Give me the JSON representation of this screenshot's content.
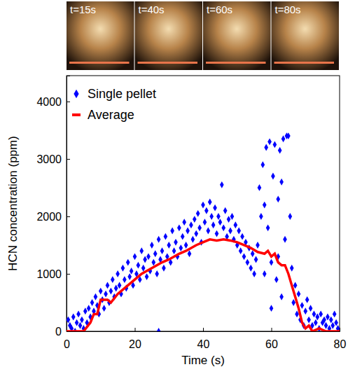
{
  "chart_data": {
    "type": "scatter",
    "annotations": [
      "t=15s",
      "t=40s",
      "t=60s",
      "t=80s"
    ],
    "x_label": "Time (s)",
    "y_label": "HCN concentration (ppm)",
    "xlim": [
      0,
      80
    ],
    "xticks": [
      0,
      20,
      40,
      60,
      80
    ],
    "ylim": [
      0,
      4450
    ],
    "yticks": [
      0,
      1000,
      2000,
      3000,
      4000
    ],
    "grid": false,
    "legend": "upper left",
    "series": [
      {
        "name": "Single pellet",
        "type": "scatter",
        "color": "#0000ff",
        "marker": "diamond",
        "x": [
          0.5,
          1,
          1.5,
          2,
          2.5,
          3,
          3.5,
          4,
          4.5,
          5,
          5.5,
          6,
          6.5,
          7,
          7.5,
          8,
          8.5,
          9,
          9.5,
          10,
          10.5,
          11,
          11.5,
          12,
          12.5,
          13,
          13.5,
          14,
          14.5,
          15,
          15.5,
          16,
          16.5,
          17,
          17.5,
          18,
          18.5,
          19,
          19.5,
          20,
          20.5,
          21,
          21.5,
          22,
          22.5,
          23,
          23.5,
          24,
          24.5,
          25,
          25.5,
          26,
          26.5,
          27,
          27.5,
          28,
          28.5,
          29,
          29.5,
          30,
          30.5,
          31,
          31.5,
          32,
          32.5,
          33,
          33.5,
          34,
          34.5,
          35,
          35.5,
          36,
          36.5,
          37,
          37.5,
          38,
          38.5,
          39,
          39.5,
          40,
          27,
          40.5,
          41,
          41.5,
          42,
          42.5,
          43,
          43.5,
          44,
          44.5,
          45,
          45.5,
          46,
          46.5,
          47,
          47.5,
          48,
          48.5,
          49,
          49.5,
          50,
          50.5,
          51,
          51.5,
          52,
          52.5,
          53,
          53.5,
          54,
          54.5,
          55,
          55.5,
          56,
          56.5,
          57,
          57.5,
          58,
          58.5,
          59,
          59.5,
          60,
          60.5,
          61,
          61.5,
          62,
          62.5,
          63,
          63.5,
          64,
          64.5,
          65,
          65.5,
          66,
          60,
          62,
          63,
          58,
          66.5,
          67,
          67.5,
          68,
          68.5,
          69,
          69.5,
          70,
          70.5,
          71,
          71.5,
          72,
          72.5,
          73,
          73.5,
          74,
          74.5,
          75,
          75.5,
          76,
          76.5,
          77,
          77.5,
          78,
          78.5,
          79,
          79.5
        ],
        "values": [
          200,
          100,
          50,
          250,
          0,
          150,
          300,
          100,
          200,
          50,
          350,
          150,
          400,
          250,
          500,
          350,
          600,
          450,
          300,
          700,
          550,
          400,
          650,
          800,
          500,
          700,
          900,
          600,
          750,
          1000,
          800,
          650,
          1100,
          900,
          750,
          1200,
          950,
          1050,
          800,
          1300,
          1000,
          1150,
          900,
          1400,
          1100,
          1250,
          950,
          1300,
          1050,
          1500,
          1200,
          1350,
          1000,
          1600,
          1250,
          1400,
          1100,
          1650,
          1300,
          1500,
          1200,
          1750,
          1400,
          1550,
          1300,
          1800,
          1450,
          1650,
          1900,
          1500,
          1750,
          1350,
          1850,
          1600,
          1950,
          1700,
          2050,
          1800,
          1550,
          2200,
          0,
          1900,
          2100,
          1750,
          2250,
          2000,
          1850,
          2150,
          1700,
          2000,
          1900,
          2550,
          1800,
          2100,
          1650,
          1950,
          1750,
          2000,
          1600,
          1850,
          1500,
          1750,
          1400,
          1650,
          1300,
          1550,
          1200,
          1450,
          1100,
          1350,
          1000,
          1250,
          1500,
          2500,
          2000,
          2900,
          2200,
          3200,
          1800,
          3300,
          1200,
          2700,
          3250,
          900,
          2300,
          3150,
          600,
          3350,
          1600,
          3400,
          3400,
          2000,
          1100,
          400,
          1300,
          2600,
          1000,
          500,
          800,
          300,
          650,
          200,
          450,
          100,
          350,
          550,
          200,
          400,
          100,
          300,
          150,
          250,
          50,
          300,
          150,
          200,
          100,
          250,
          50,
          200,
          100,
          300,
          150,
          50
        ]
      },
      {
        "name": "Average",
        "type": "line",
        "color": "#ff0000",
        "line_style": "solid",
        "x": [
          0,
          5,
          7,
          8,
          9,
          10,
          12,
          13,
          15,
          18,
          20,
          22,
          25,
          28,
          30,
          33,
          35,
          38,
          40,
          42,
          44,
          46,
          48,
          50,
          52,
          54,
          56,
          58,
          59,
          60,
          61,
          62,
          63,
          64,
          65,
          66,
          67,
          68,
          69,
          70,
          71,
          72,
          74,
          76,
          80
        ],
        "values": [
          0,
          0,
          150,
          300,
          300,
          550,
          550,
          500,
          650,
          800,
          900,
          1000,
          1100,
          1200,
          1250,
          1350,
          1400,
          1500,
          1550,
          1600,
          1580,
          1600,
          1580,
          1550,
          1500,
          1450,
          1380,
          1350,
          1400,
          1300,
          1350,
          1200,
          1150,
          1150,
          1000,
          800,
          600,
          400,
          150,
          50,
          100,
          0,
          50,
          0,
          0
        ]
      }
    ]
  }
}
